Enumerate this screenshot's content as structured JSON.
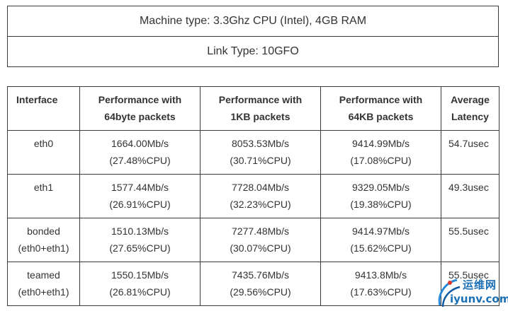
{
  "info": {
    "machine": "Machine type: 3.3Ghz CPU (Intel), 4GB RAM",
    "link": "Link Type: 10GFO"
  },
  "table": {
    "headers": [
      {
        "l1": "Interface",
        "l2": ""
      },
      {
        "l1": "Performance with",
        "l2": "64byte packets"
      },
      {
        "l1": "Performance with",
        "l2": "1KB packets"
      },
      {
        "l1": "Performance with",
        "l2": "64KB packets"
      },
      {
        "l1": "Average",
        "l2": "Latency"
      }
    ],
    "rows": [
      {
        "iface": {
          "l1": "eth0",
          "l2": ""
        },
        "p64": {
          "l1": "1664.00Mb/s",
          "l2": "(27.48%CPU)"
        },
        "p1k": {
          "l1": "8053.53Mb/s",
          "l2": "(30.71%CPU)"
        },
        "p64k": {
          "l1": "9414.99Mb/s",
          "l2": "(17.08%CPU)"
        },
        "lat": "54.7usec"
      },
      {
        "iface": {
          "l1": "eth1",
          "l2": ""
        },
        "p64": {
          "l1": "1577.44Mb/s",
          "l2": "(26.91%CPU)"
        },
        "p1k": {
          "l1": "7728.04Mb/s",
          "l2": "(32.23%CPU)"
        },
        "p64k": {
          "l1": "9329.05Mb/s",
          "l2": "(19.38%CPU)"
        },
        "lat": "49.3usec"
      },
      {
        "iface": {
          "l1": "bonded",
          "l2": "(eth0+eth1)"
        },
        "p64": {
          "l1": "1510.13Mb/s",
          "l2": "(27.65%CPU)"
        },
        "p1k": {
          "l1": "7277.48Mb/s",
          "l2": "(30.07%CPU)"
        },
        "p64k": {
          "l1": "9414.97Mb/s",
          "l2": "(15.62%CPU)"
        },
        "lat": "55.5usec"
      },
      {
        "iface": {
          "l1": "teamed",
          "l2": "(eth0+eth1)"
        },
        "p64": {
          "l1": "1550.15Mb/s",
          "l2": "(26.81%CPU)"
        },
        "p1k": {
          "l1": "7435.76Mb/s",
          "l2": "(29.56%CPU)"
        },
        "p64k": {
          "l1": "9413.8Mb/s",
          "l2": "(17.63%CPU)"
        },
        "lat": "55.5usec"
      }
    ]
  },
  "watermark": {
    "text_top": "运维网",
    "text_bottom": "iyunv.com",
    "color": "#1b6fb5"
  }
}
